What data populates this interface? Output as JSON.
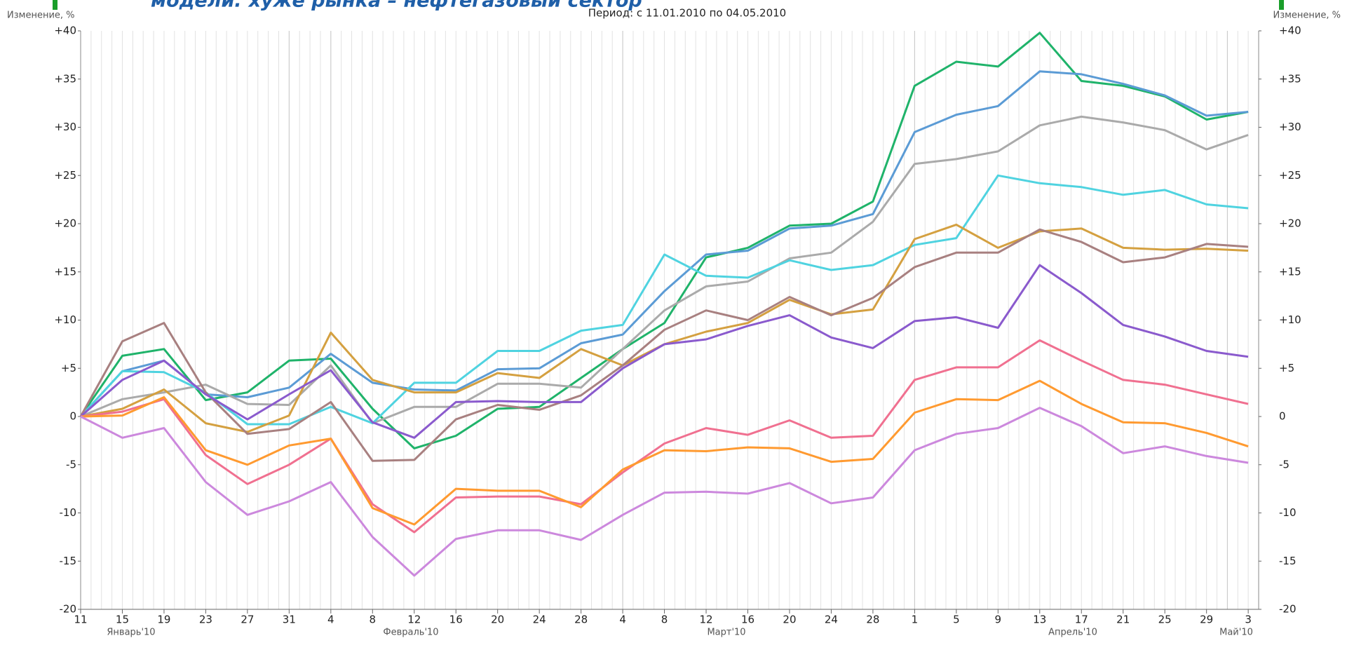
{
  "chart_data": {
    "type": "line",
    "title": "модели: хуже рынка – нефтегазовый сектор",
    "subtitle": "Период: с 11.01.2010 по 04.05.2010",
    "y_label": "Изменение, %",
    "y2_label": "Изменение, %",
    "categories": [
      "11",
      "15",
      "19",
      "23",
      "27",
      "31",
      "4",
      "8",
      "12",
      "16",
      "20",
      "24",
      "28",
      "4",
      "8",
      "12",
      "16",
      "20",
      "24",
      "28",
      "1",
      "5",
      "9",
      "13",
      "17",
      "21",
      "25",
      "29",
      "3"
    ],
    "months": [
      "Январь'10",
      "Февраль'10",
      "Март'10",
      "Апрель'10",
      "Май'10"
    ],
    "ylim": [
      -20,
      40
    ],
    "yticks": [
      {
        "value": 40,
        "label": "+40"
      },
      {
        "value": 35,
        "label": "+35"
      },
      {
        "value": 30,
        "label": "+30"
      },
      {
        "value": 25,
        "label": "+25"
      },
      {
        "value": 20,
        "label": "+20"
      },
      {
        "value": 15,
        "label": "+15"
      },
      {
        "value": 10,
        "label": "+10"
      },
      {
        "value": 5,
        "label": "+5"
      },
      0,
      -5,
      -10,
      -15,
      -20
    ],
    "y2lim": [
      -20,
      40
    ],
    "y2ticks": [
      {
        "value": 40,
        "label": "+40"
      },
      {
        "value": 35,
        "label": "+35"
      },
      {
        "value": 30,
        "label": "+30"
      },
      {
        "value": 25,
        "label": "+25"
      },
      {
        "value": 20,
        "label": "+20"
      },
      {
        "value": 15,
        "label": "+15"
      },
      {
        "value": 10,
        "label": "+10"
      },
      {
        "value": 5,
        "label": "+5"
      },
      0,
      -5,
      -10,
      -15,
      -20
    ],
    "grid": "x",
    "series": [
      {
        "color": "#1fb36a",
        "values": [
          0,
          6.3,
          7,
          1.7,
          2.5,
          5.8,
          6,
          0.8,
          -3.3,
          -2,
          0.8,
          1,
          4,
          7,
          9.7,
          16.5,
          17.5,
          19.8,
          20,
          22.3,
          34.3,
          36.8,
          36.3,
          39.8,
          34.8,
          34.3,
          33.2,
          30.8,
          31.6
        ]
      },
      {
        "color": "#5b9bd5",
        "values": [
          0,
          4.7,
          5.8,
          2.3,
          2,
          3,
          6.5,
          3.5,
          2.8,
          2.7,
          4.9,
          5,
          7.6,
          8.5,
          13,
          16.8,
          17.2,
          19.5,
          19.8,
          21,
          29.5,
          31.3,
          32.2,
          35.8,
          35.5,
          34.5,
          33.3,
          31.2,
          31.6
        ]
      },
      {
        "color": "#aaaaaa",
        "values": [
          0,
          1.8,
          2.5,
          3.3,
          1.3,
          1.2,
          5.3,
          -0.7,
          1,
          1,
          3.4,
          3.4,
          3,
          7,
          11,
          13.5,
          14,
          16.4,
          17,
          20.2,
          26.2,
          26.7,
          27.5,
          30.2,
          31.1,
          30.5,
          29.7,
          27.7,
          29.2
        ]
      },
      {
        "color": "#4fd3e0",
        "values": [
          0,
          4.7,
          4.6,
          2.5,
          -0.8,
          -0.8,
          1,
          -0.7,
          3.5,
          3.5,
          6.8,
          6.8,
          8.9,
          9.5,
          16.8,
          14.6,
          14.4,
          16.2,
          15.2,
          15.7,
          17.8,
          18.5,
          25,
          24.2,
          23.8,
          23,
          23.5,
          22,
          21.6
        ]
      },
      {
        "color": "#d4a040",
        "values": [
          0,
          0.8,
          2.8,
          -0.7,
          -1.6,
          0.1,
          8.7,
          3.8,
          2.5,
          2.5,
          4.5,
          4,
          7,
          5.3,
          7.5,
          8.8,
          9.7,
          12.1,
          10.6,
          11.1,
          18.4,
          19.9,
          17.5,
          19.2,
          19.5,
          17.5,
          17.3,
          17.4,
          17.2
        ]
      },
      {
        "color": "#a88080",
        "values": [
          0,
          7.8,
          9.7,
          2.5,
          -1.8,
          -1.3,
          1.5,
          -4.6,
          -4.5,
          -0.3,
          1.2,
          0.7,
          2.2,
          5.3,
          9,
          11,
          10,
          12.4,
          10.5,
          12.3,
          15.5,
          17,
          17,
          19.4,
          18.1,
          16,
          16.5,
          17.9,
          17.6
        ]
      },
      {
        "color": "#8a5acd",
        "values": [
          0,
          3.8,
          5.8,
          2.3,
          -0.3,
          2.3,
          4.8,
          -0.6,
          -2.2,
          1.5,
          1.6,
          1.5,
          1.5,
          5,
          7.5,
          8,
          9.4,
          10.5,
          8.2,
          7.1,
          9.9,
          10.3,
          9.2,
          15.7,
          12.8,
          9.5,
          8.3,
          6.8,
          6.2
        ]
      },
      {
        "color": "#f07090",
        "values": [
          0,
          0.5,
          1.8,
          -4,
          -7,
          -5,
          -2.3,
          -9.1,
          -12,
          -8.4,
          -8.3,
          -8.3,
          -9.1,
          -5.8,
          -2.8,
          -1.2,
          -1.9,
          -0.4,
          -2.2,
          -2,
          3.8,
          5.1,
          5.1,
          7.9,
          5.8,
          3.8,
          3.3,
          2.3,
          1.3
        ]
      },
      {
        "color": "#ff9a30",
        "values": [
          0,
          0.1,
          2,
          -3.5,
          -5,
          -3,
          -2.3,
          -9.5,
          -11.2,
          -7.5,
          -7.7,
          -7.7,
          -9.4,
          -5.5,
          -3.5,
          -3.6,
          -3.2,
          -3.3,
          -4.7,
          -4.4,
          0.4,
          1.8,
          1.7,
          3.7,
          1.3,
          -0.6,
          -0.7,
          -1.7,
          -3.1
        ]
      },
      {
        "color": "#cc88dd",
        "values": [
          0,
          -2.2,
          -1.2,
          -6.8,
          -10.2,
          -8.8,
          -6.8,
          -12.5,
          -16.5,
          -12.7,
          -11.8,
          -11.8,
          -12.8,
          -10.2,
          -7.9,
          -7.8,
          -8,
          -6.9,
          -9,
          -8.4,
          -3.5,
          -1.8,
          -1.2,
          0.9,
          -1,
          -3.8,
          -3.1,
          -4.1,
          -4.8
        ]
      }
    ]
  }
}
